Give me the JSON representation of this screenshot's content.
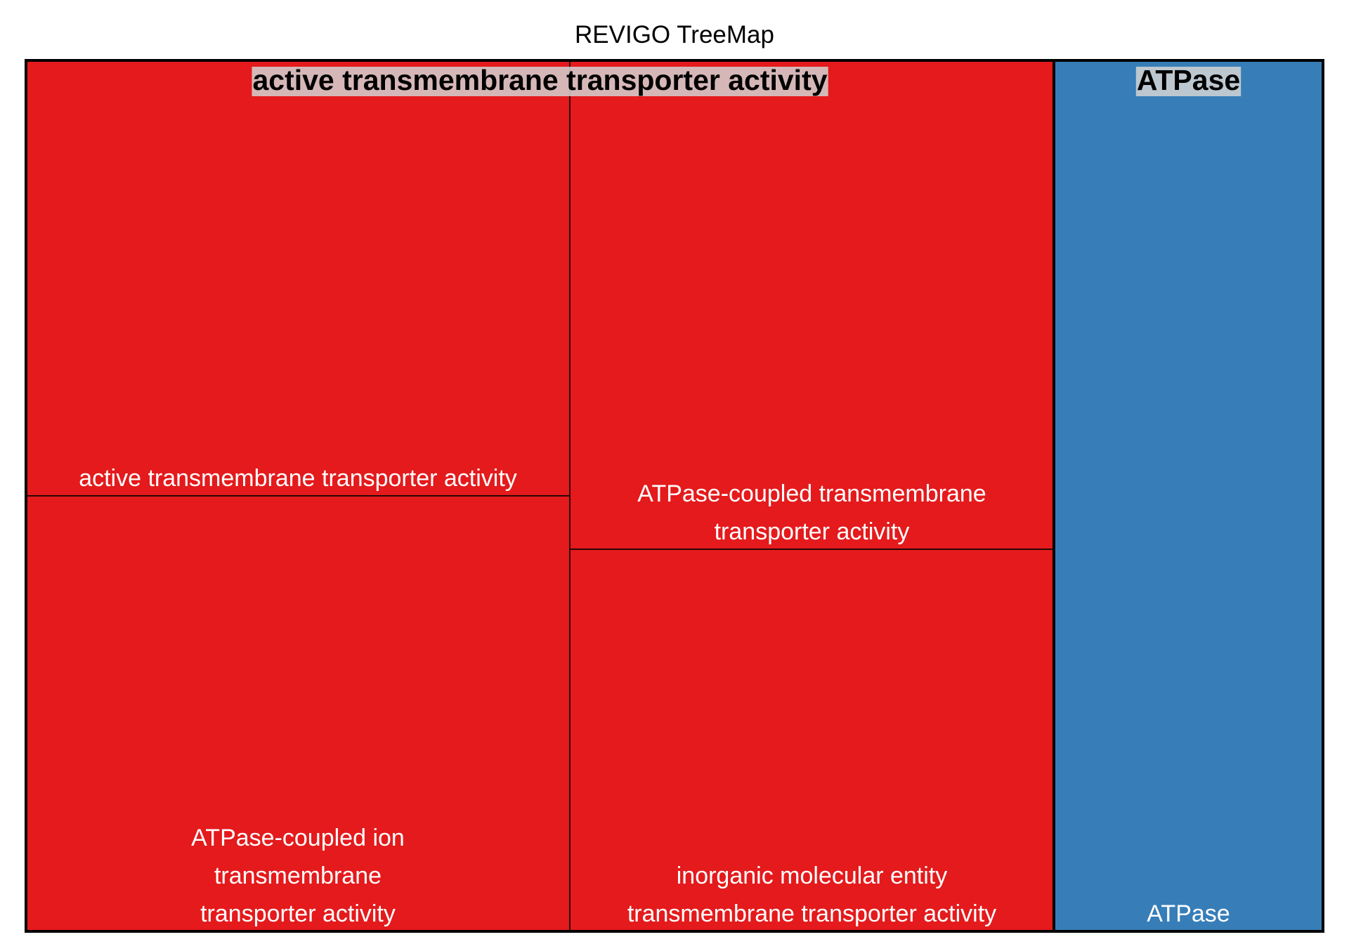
{
  "chart_data": {
    "type": "treemap",
    "title": "REVIGO TreeMap",
    "groups": [
      {
        "name": "active transmembrane transporter activity",
        "color": "#E41A1C",
        "children": [
          {
            "label": "active transmembrane transporter activity",
            "lines": [
              "active transmembrane transporter activity"
            ]
          },
          {
            "label": "ATPase-coupled ion transmembrane transporter activity",
            "lines": [
              "ATPase-coupled ion",
              "transmembrane",
              "transporter activity"
            ]
          },
          {
            "label": "ATPase-coupled transmembrane transporter activity",
            "lines": [
              "ATPase-coupled transmembrane",
              "transporter activity"
            ]
          },
          {
            "label": "inorganic molecular entity transmembrane transporter activity",
            "lines": [
              "inorganic molecular entity",
              "transmembrane transporter activity"
            ]
          }
        ]
      },
      {
        "name": "ATPase",
        "color": "#377EB8",
        "children": [
          {
            "label": "ATPase",
            "lines": [
              "ATPase"
            ]
          }
        ]
      }
    ]
  }
}
